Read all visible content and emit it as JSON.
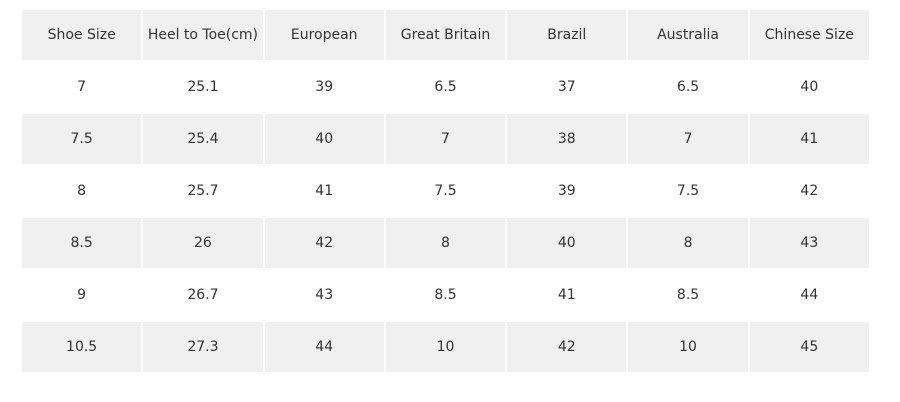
{
  "table": {
    "header": [
      "Shoe Size",
      "Heel to Toe(cm)",
      "European",
      "Great Britain",
      "Brazil",
      "Australia",
      "Chinese Size"
    ],
    "rows": [
      [
        "7",
        "25.1",
        "39",
        "6.5",
        "37",
        "6.5",
        "40"
      ],
      [
        "7.5",
        "25.4",
        "40",
        "7",
        "38",
        "7",
        "41"
      ],
      [
        "8",
        "25.7",
        "41",
        "7.5",
        "39",
        "7.5",
        "42"
      ],
      [
        "8.5",
        "26",
        "42",
        "8",
        "40",
        "8",
        "43"
      ],
      [
        "9",
        "26.7",
        "43",
        "8.5",
        "41",
        "8.5",
        "44"
      ],
      [
        "10.5",
        "27.3",
        "44",
        "10",
        "42",
        "10",
        "45"
      ]
    ]
  }
}
